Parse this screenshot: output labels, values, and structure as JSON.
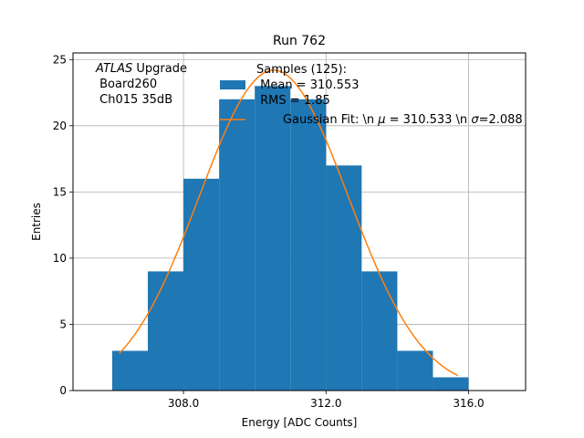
{
  "chart_data": {
    "type": "bar",
    "title": "Run 762",
    "xlabel": "Energy [ADC Counts]",
    "ylabel": "Entries",
    "xlim": [
      304.9,
      317.6
    ],
    "ylim": [
      0,
      25.5
    ],
    "grid": true,
    "x_ticks": [
      308.0,
      312.0,
      316.0
    ],
    "x_tick_labels": [
      "308.0",
      "312.0",
      "316.0"
    ],
    "y_ticks": [
      0,
      5,
      10,
      15,
      20,
      25
    ],
    "y_tick_labels": [
      "0",
      "5",
      "10",
      "15",
      "20",
      "25"
    ],
    "bin_edges": [
      306,
      307,
      308,
      309,
      310,
      311,
      312,
      313,
      314,
      315,
      316
    ],
    "values": [
      3,
      9,
      16,
      22,
      23,
      22,
      17,
      9,
      3,
      1
    ],
    "fit": {
      "mean": 310.533,
      "sigma": 2.088,
      "amplitude": 24.2,
      "x_range": [
        306.2,
        315.7
      ]
    },
    "annotation": {
      "italic": "ATLAS",
      "line1_rest": " Upgrade",
      "line2": " Board260",
      "line3": " Ch015 35dB"
    },
    "legend": {
      "position": "top-center",
      "samples_line1": "Samples (125):",
      "samples_line2": " Mean = 310.553",
      "samples_line3": " RMS = 1.85",
      "fit_label_start": "Gaussian Fit: \\n ",
      "fit_mu_symbol": "μ",
      "fit_label_mid": " = 310.533 \\n ",
      "fit_sigma_symbol": "σ",
      "fit_label_end": "=2.088"
    },
    "colors": {
      "bars": "#1f77b4",
      "fit": "#ff7f0e",
      "grid": "#b0b0b0"
    }
  }
}
